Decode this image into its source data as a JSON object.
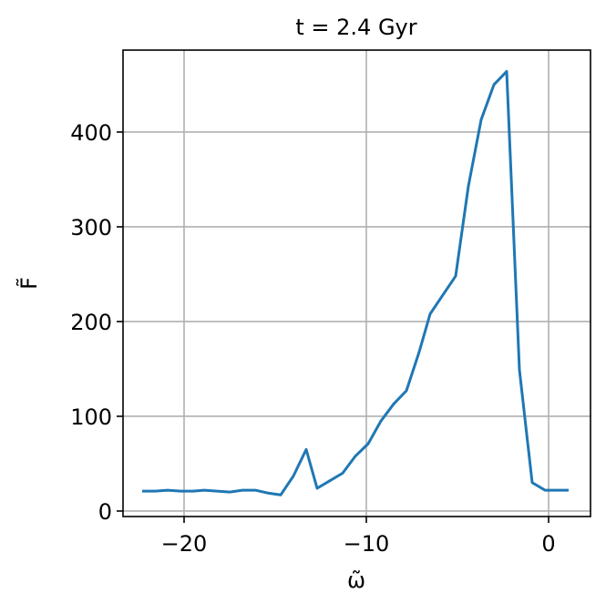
{
  "chart_data": {
    "type": "line",
    "title": "t = 2.4 Gyr",
    "x_label": "ω̃",
    "y_label": "F̃",
    "x": [
      -22.3,
      -21.6,
      -20.9,
      -20.2,
      -19.5,
      -18.9,
      -18.2,
      -17.5,
      -16.8,
      -16.1,
      -15.4,
      -14.7,
      -14.0,
      -13.3,
      -12.7,
      -12.0,
      -11.3,
      -10.6,
      -9.9,
      -9.2,
      -8.5,
      -7.8,
      -7.1,
      -6.5,
      -5.8,
      -5.1,
      -4.4,
      -3.7,
      -3.0,
      -2.3,
      -1.6,
      -0.9,
      -0.2,
      0.4,
      1.1
    ],
    "series": [
      {
        "name": "F",
        "color": "#1f77b4",
        "values": [
          21,
          21,
          22,
          21,
          21,
          22,
          21,
          20,
          22,
          22,
          19,
          17,
          37,
          65,
          24,
          32,
          40,
          58,
          71,
          95,
          113,
          127,
          168,
          208,
          228,
          248,
          343,
          413,
          450,
          464,
          149,
          30,
          22,
          22,
          22
        ]
      }
    ],
    "xlim": [
      -23.35,
      2.3
    ],
    "ylim": [
      -5.8,
      486.5
    ],
    "xticks": [
      {
        "value": -20,
        "label": "−20"
      },
      {
        "value": -10,
        "label": "−10"
      },
      0
    ],
    "yticks": [
      0,
      100,
      200,
      300,
      400
    ],
    "grid": true
  }
}
